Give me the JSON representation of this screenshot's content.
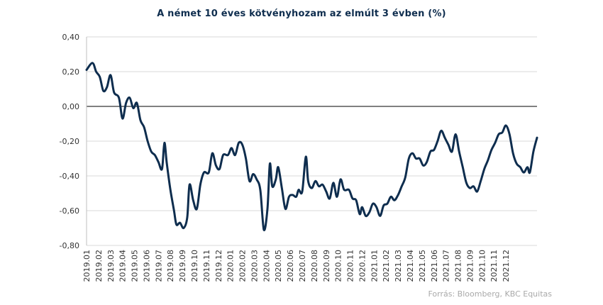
{
  "chart_data": {
    "type": "line",
    "title": "A német 10 éves kötvényhozam az elmúlt 3 évben (%)",
    "source": "Forrás: Bloomberg, KBC Equitas",
    "xlabel": "",
    "ylabel": "",
    "ylim": [
      -0.8,
      0.4
    ],
    "yticks": [
      0.4,
      0.2,
      0.0,
      -0.2,
      -0.4,
      -0.6,
      -0.8
    ],
    "ytick_labels": [
      "0,40",
      "0,20",
      "0,00",
      "-0,20",
      "-0,40",
      "-0,60",
      "-0,80"
    ],
    "xticks": [
      "2019.01",
      "2019.02",
      "2019.03",
      "2019.04",
      "2019.05",
      "2019.06",
      "2019.07",
      "2019.08",
      "2019.09",
      "2019.10",
      "2019.11",
      "2019.12",
      "2020.01",
      "2020.02",
      "2020.03",
      "2020.04",
      "2020.05",
      "2020.06",
      "2020.07",
      "2020.08",
      "2020.09",
      "2020.10",
      "2020.11",
      "2020.12",
      "2021.01",
      "2021.02",
      "2021.03",
      "2021.04",
      "2021.05",
      "2021.06",
      "2021.07",
      "2021.08",
      "2021.09",
      "2021.10",
      "2021.11",
      "2021.12"
    ],
    "grid": "horizontal",
    "line_color": "#0e2d4e",
    "series": [
      {
        "values": [
          [
            0.0,
            0.21
          ],
          [
            0.5,
            0.25
          ],
          [
            0.8,
            0.2
          ],
          [
            1.1,
            0.17
          ],
          [
            1.4,
            0.09
          ],
          [
            1.7,
            0.11
          ],
          [
            2.0,
            0.18
          ],
          [
            2.3,
            0.08
          ],
          [
            2.7,
            0.05
          ],
          [
            3.0,
            -0.07
          ],
          [
            3.3,
            0.02
          ],
          [
            3.6,
            0.05
          ],
          [
            3.9,
            -0.01
          ],
          [
            4.2,
            0.02
          ],
          [
            4.5,
            -0.08
          ],
          [
            4.8,
            -0.12
          ],
          [
            5.1,
            -0.2
          ],
          [
            5.4,
            -0.26
          ],
          [
            5.7,
            -0.28
          ],
          [
            6.0,
            -0.32
          ],
          [
            6.3,
            -0.36
          ],
          [
            6.5,
            -0.21
          ],
          [
            6.7,
            -0.33
          ],
          [
            7.0,
            -0.48
          ],
          [
            7.3,
            -0.6
          ],
          [
            7.5,
            -0.68
          ],
          [
            7.8,
            -0.67
          ],
          [
            8.1,
            -0.7
          ],
          [
            8.4,
            -0.64
          ],
          [
            8.6,
            -0.45
          ],
          [
            8.9,
            -0.54
          ],
          [
            9.2,
            -0.59
          ],
          [
            9.5,
            -0.45
          ],
          [
            9.8,
            -0.38
          ],
          [
            10.2,
            -0.38
          ],
          [
            10.5,
            -0.27
          ],
          [
            10.8,
            -0.34
          ],
          [
            11.1,
            -0.36
          ],
          [
            11.4,
            -0.28
          ],
          [
            11.8,
            -0.28
          ],
          [
            12.1,
            -0.24
          ],
          [
            12.4,
            -0.28
          ],
          [
            12.7,
            -0.21
          ],
          [
            13.0,
            -0.22
          ],
          [
            13.3,
            -0.3
          ],
          [
            13.6,
            -0.43
          ],
          [
            13.9,
            -0.39
          ],
          [
            14.2,
            -0.42
          ],
          [
            14.5,
            -0.48
          ],
          [
            14.8,
            -0.71
          ],
          [
            15.1,
            -0.59
          ],
          [
            15.3,
            -0.33
          ],
          [
            15.5,
            -0.46
          ],
          [
            15.8,
            -0.42
          ],
          [
            16.0,
            -0.35
          ],
          [
            16.3,
            -0.47
          ],
          [
            16.6,
            -0.59
          ],
          [
            16.9,
            -0.52
          ],
          [
            17.2,
            -0.51
          ],
          [
            17.5,
            -0.52
          ],
          [
            17.7,
            -0.48
          ],
          [
            18.0,
            -0.49
          ],
          [
            18.3,
            -0.29
          ],
          [
            18.5,
            -0.43
          ],
          [
            18.8,
            -0.47
          ],
          [
            19.1,
            -0.43
          ],
          [
            19.4,
            -0.46
          ],
          [
            19.7,
            -0.45
          ],
          [
            20.0,
            -0.49
          ],
          [
            20.3,
            -0.53
          ],
          [
            20.6,
            -0.44
          ],
          [
            20.9,
            -0.52
          ],
          [
            21.2,
            -0.42
          ],
          [
            21.5,
            -0.48
          ],
          [
            21.9,
            -0.48
          ],
          [
            22.2,
            -0.53
          ],
          [
            22.5,
            -0.54
          ],
          [
            22.8,
            -0.62
          ],
          [
            23.0,
            -0.58
          ],
          [
            23.3,
            -0.63
          ],
          [
            23.6,
            -0.61
          ],
          [
            23.9,
            -0.56
          ],
          [
            24.2,
            -0.58
          ],
          [
            24.5,
            -0.63
          ],
          [
            24.8,
            -0.57
          ],
          [
            25.1,
            -0.56
          ],
          [
            25.4,
            -0.52
          ],
          [
            25.7,
            -0.54
          ],
          [
            26.0,
            -0.51
          ],
          [
            26.3,
            -0.46
          ],
          [
            26.6,
            -0.41
          ],
          [
            26.9,
            -0.3
          ],
          [
            27.2,
            -0.27
          ],
          [
            27.5,
            -0.3
          ],
          [
            27.8,
            -0.3
          ],
          [
            28.1,
            -0.34
          ],
          [
            28.4,
            -0.32
          ],
          [
            28.7,
            -0.26
          ],
          [
            29.0,
            -0.25
          ],
          [
            29.3,
            -0.2
          ],
          [
            29.6,
            -0.14
          ],
          [
            29.9,
            -0.18
          ],
          [
            30.2,
            -0.22
          ],
          [
            30.5,
            -0.26
          ],
          [
            30.8,
            -0.16
          ],
          [
            31.1,
            -0.26
          ],
          [
            31.4,
            -0.35
          ],
          [
            31.7,
            -0.44
          ],
          [
            32.0,
            -0.47
          ],
          [
            32.3,
            -0.46
          ],
          [
            32.6,
            -0.49
          ],
          [
            32.9,
            -0.43
          ],
          [
            33.2,
            -0.36
          ],
          [
            33.5,
            -0.31
          ],
          [
            33.8,
            -0.25
          ],
          [
            34.1,
            -0.21
          ],
          [
            34.4,
            -0.16
          ],
          [
            34.7,
            -0.15
          ],
          [
            35.0,
            -0.11
          ],
          [
            35.3,
            -0.16
          ],
          [
            35.6,
            -0.27
          ],
          [
            35.9,
            -0.33
          ],
          [
            36.2,
            -0.35
          ],
          [
            36.5,
            -0.38
          ],
          [
            36.8,
            -0.35
          ],
          [
            37.0,
            -0.38
          ],
          [
            37.3,
            -0.26
          ],
          [
            37.6,
            -0.18
          ]
        ]
      }
    ]
  }
}
